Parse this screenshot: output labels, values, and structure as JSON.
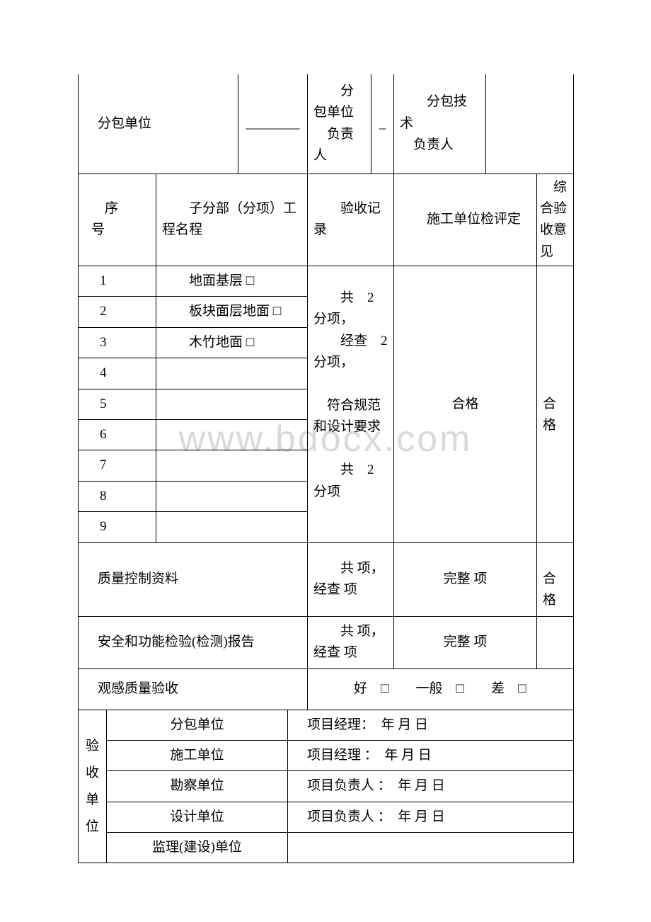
{
  "header": {
    "subcontractor_label": "分包单位",
    "subcontractor_blank": "________",
    "sub_unit_leader_label": "　　分包单位\n　负责人",
    "sub_unit_leader_blank": "_",
    "sub_tech_leader_label": "　　分包技术\n　负责人"
  },
  "columns": {
    "seq": "序号",
    "name": "子分部（分项）工程名程",
    "record": "验收记录",
    "evaluation": "施工单位检评定",
    "opinion": "综合验收意见"
  },
  "rows": [
    {
      "n": "1",
      "name": "　　地面基层 □"
    },
    {
      "n": "2",
      "name": "　　板块面层地面 □"
    },
    {
      "n": "3",
      "name": "　　木竹地面 □"
    },
    {
      "n": "4",
      "name": ""
    },
    {
      "n": "5",
      "name": ""
    },
    {
      "n": "6",
      "name": ""
    },
    {
      "n": "7",
      "name": ""
    },
    {
      "n": "8",
      "name": ""
    },
    {
      "n": "9",
      "name": ""
    }
  ],
  "record_text": "　　共　2 分项，\n　　经查　2 分项，\n\n　符合规范和设计要求\n\n　　共　2 分项",
  "eval_text": "合格",
  "opinion_text": "　合格",
  "qc": {
    "label": "质量控制资料",
    "record": "　　共 项，经查 项",
    "eval": "完整 项",
    "opinion": "　合格"
  },
  "safety": {
    "label": "安全和功能检验(检测)报告",
    "record": "　　共 项，经查 项",
    "eval": "完整 项"
  },
  "visual": {
    "label": "观感质量验收",
    "value": "　　　好　□　　一般　□　　差　□"
  },
  "signoff": {
    "group_label": "验收单位",
    "rows": [
      {
        "unit": "分包单位",
        "val": "项目经理：　年 月 日"
      },
      {
        "unit": "施工单位",
        "val": "项目经理 ：　年 月 日"
      },
      {
        "unit": "勘察单位",
        "val": "项目负责人 ：　年 月 日"
      },
      {
        "unit": "设计单位",
        "val": "项目负责人 ：　年 月 日"
      },
      {
        "unit": "监理(建设)单位",
        "val": ""
      }
    ]
  },
  "watermark": "www.bdocx.com"
}
